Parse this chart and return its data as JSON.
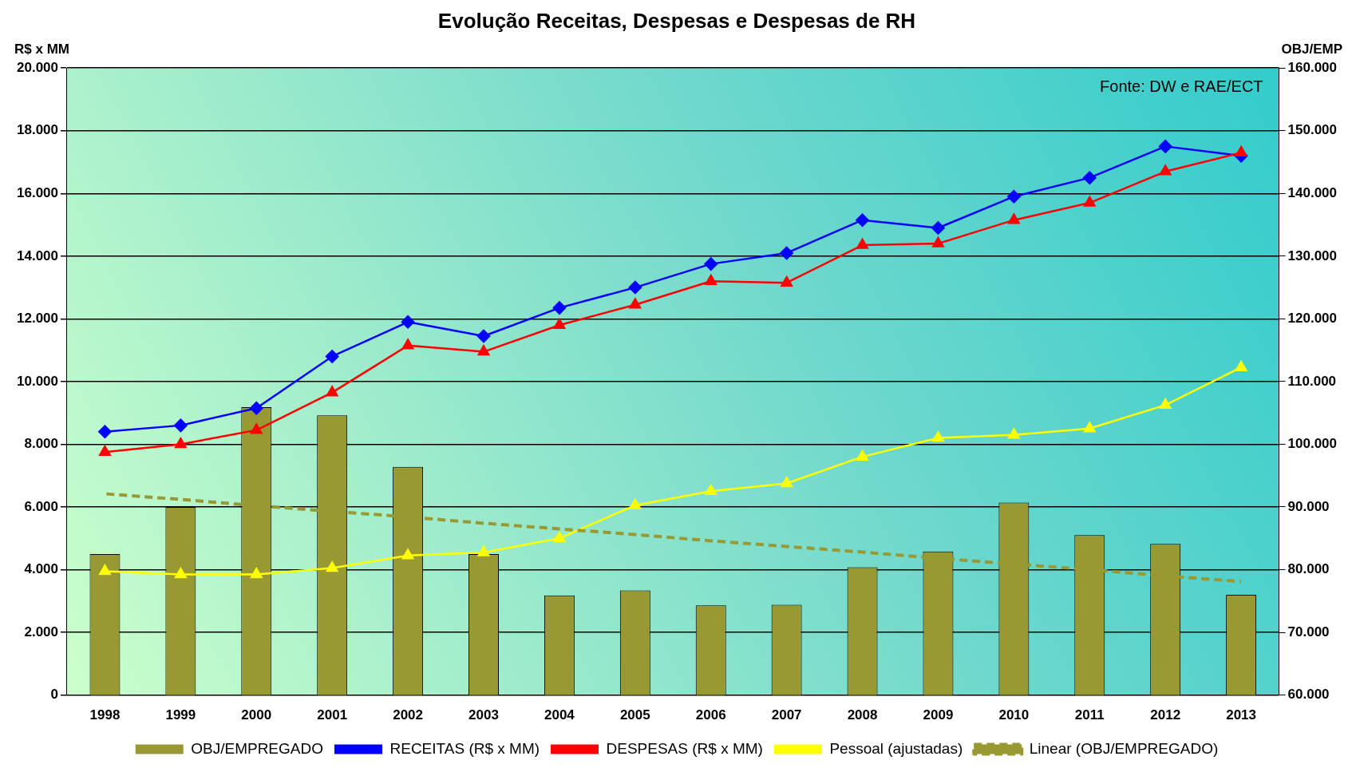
{
  "chart_data": {
    "type": "bar",
    "title": "Evolução Receitas, Despesas e Despesas de RH",
    "ylabel": "R$ x MM",
    "y2label": "OBJ/EMP",
    "annotations": [
      "Fonte: DW e RAE/ECT"
    ],
    "categories": [
      "1998",
      "1999",
      "2000",
      "2001",
      "2002",
      "2003",
      "2004",
      "2005",
      "2006",
      "2007",
      "2008",
      "2009",
      "2010",
      "2011",
      "2012",
      "2013"
    ],
    "series": [
      {
        "name": "OBJ/EMPREGADO",
        "axis": "y2",
        "color": "#999933",
        "values": [
          82500,
          90000,
          105900,
          104600,
          96400,
          82500,
          75900,
          76700,
          74300,
          74400,
          80400,
          82900,
          90700,
          85500,
          84100,
          76000
        ]
      },
      {
        "name": "RECEITAS (R$ x MM)",
        "type": "line",
        "color": "#0000ff",
        "marker": "diamond",
        "values": [
          8400,
          8600,
          9150,
          10800,
          11900,
          11450,
          12350,
          13000,
          13750,
          14100,
          15150,
          14900,
          15900,
          16500,
          17500,
          17200
        ]
      },
      {
        "name": "DESPESAS (R$ x MM)",
        "type": "line",
        "color": "#ff0000",
        "marker": "triangle",
        "values": [
          7750,
          8000,
          8450,
          9650,
          11150,
          10950,
          11800,
          12450,
          13200,
          13150,
          14350,
          14400,
          15150,
          15700,
          16700,
          17300
        ]
      },
      {
        "name": "Pessoal (ajustadas)",
        "type": "line",
        "color": "#ffff00",
        "marker": "triangle",
        "values": [
          3950,
          3850,
          3850,
          4050,
          4450,
          4550,
          5000,
          6050,
          6500,
          6750,
          7600,
          8200,
          8300,
          8500,
          9250,
          10450
        ]
      },
      {
        "name": "Linear (OBJ/EMPREGADO)",
        "type": "line",
        "axis": "y2",
        "color": "#999933",
        "marker": "none",
        "line_style": "dashed",
        "values": [
          92100,
          91200,
          90200,
          89300,
          88400,
          87400,
          86500,
          85600,
          84600,
          83700,
          82800,
          81800,
          80900,
          80000,
          79000,
          78100
        ]
      }
    ],
    "ylim": [
      0,
      20000
    ],
    "yticks": [
      {
        "value": 0,
        "label": "0"
      },
      {
        "value": 2000,
        "label": "2.000"
      },
      {
        "value": 4000,
        "label": "4.000"
      },
      {
        "value": 6000,
        "label": "6.000"
      },
      {
        "value": 8000,
        "label": "8.000"
      },
      {
        "value": 10000,
        "label": "10.000"
      },
      {
        "value": 12000,
        "label": "12.000"
      },
      {
        "value": 14000,
        "label": "14.000"
      },
      {
        "value": 16000,
        "label": "16.000"
      },
      {
        "value": 18000,
        "label": "18.000"
      },
      {
        "value": 20000,
        "label": "20.000"
      }
    ],
    "y2lim": [
      60000,
      160000
    ],
    "y2ticks": [
      {
        "value": 60000,
        "label": "60.000"
      },
      {
        "value": 70000,
        "label": "70.000"
      },
      {
        "value": 80000,
        "label": "80.000"
      },
      {
        "value": 90000,
        "label": "90.000"
      },
      {
        "value": 100000,
        "label": "100.000"
      },
      {
        "value": 110000,
        "label": "110.000"
      },
      {
        "value": 120000,
        "label": "120.000"
      },
      {
        "value": 130000,
        "label": "130.000"
      },
      {
        "value": 140000,
        "label": "140.000"
      },
      {
        "value": 150000,
        "label": "150.000"
      },
      {
        "value": 160000,
        "label": "160.000"
      }
    ],
    "grid": "y",
    "legend": "bottom"
  }
}
